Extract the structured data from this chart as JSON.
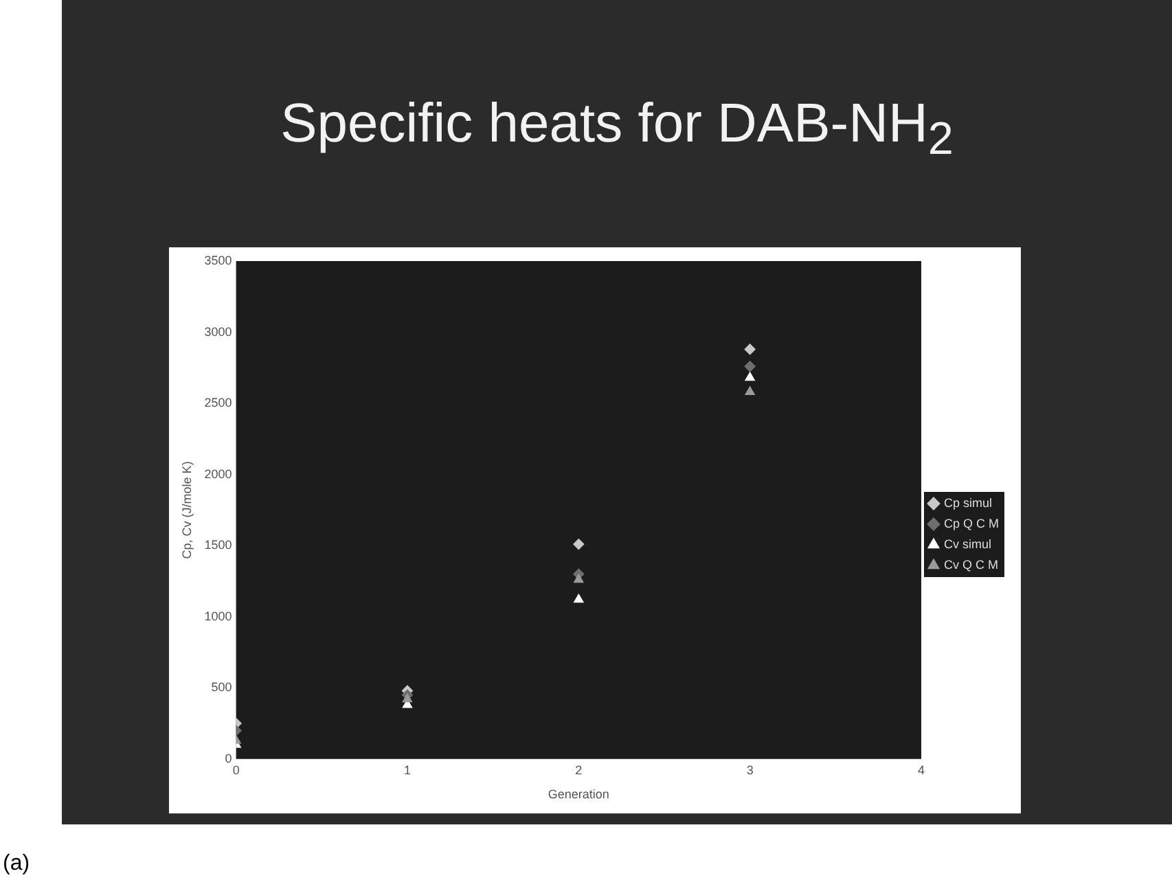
{
  "chart_data": {
    "type": "scatter",
    "title": "Specific heats for DAB-NH$_{2}$",
    "xlabel": "Generation",
    "ylabel": "Cp, Cv (J/mole K)",
    "annotations": [
      "(a)"
    ],
    "x": [
      0,
      1,
      2,
      3
    ],
    "series": [
      {
        "name": "Cp simul",
        "color": "#c8c8c8",
        "marker": "diamond",
        "values": [
          250,
          480,
          1510,
          2880
        ]
      },
      {
        "name": "Cp Q C M",
        "color": "#6e6e6e",
        "marker": "diamond",
        "values": [
          200,
          450,
          1300,
          2760
        ]
      },
      {
        "name": "Cv simul",
        "color": "#ffffff",
        "marker": "triangle",
        "values": [
          100,
          380,
          1120,
          2680
        ]
      },
      {
        "name": "Cv Q C M",
        "color": "#9a9a9a",
        "marker": "triangle",
        "values": [
          130,
          420,
          1260,
          2580
        ]
      }
    ],
    "xlim": [
      0,
      4
    ],
    "xticks": [
      0,
      1,
      2,
      3,
      4
    ],
    "ylim": [
      0,
      3500
    ],
    "yticks": [
      0,
      500,
      1000,
      1500,
      2000,
      2500,
      3000,
      3500
    ],
    "grid": false,
    "legend": "right"
  }
}
